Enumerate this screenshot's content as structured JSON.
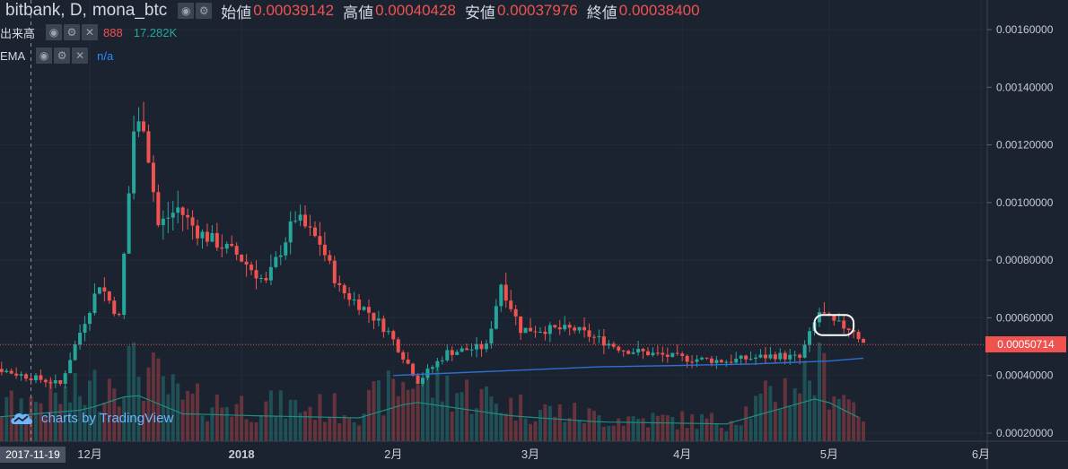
{
  "legend": {
    "symbol": "bitbank, D,",
    "pair": "mona_btc",
    "open_label": "始値",
    "open": "0.00039142",
    "high_label": "高値",
    "high": "0.00040428",
    "low_label": "安値",
    "low": "0.00037976",
    "close_label": "終値",
    "close": "0.00038400"
  },
  "volume_legend": {
    "label": "出来高",
    "value_a": "888",
    "value_b": "17.282K"
  },
  "ema_legend": {
    "label": "EMA",
    "value": "n/a"
  },
  "icons": {
    "visibility": "eye-icon",
    "settings": "gear-icon",
    "remove": "close-icon",
    "brand": "tradingview-cloud-icon"
  },
  "brand": {
    "text": "charts by TradingView"
  },
  "crosshair": {
    "date_label": "2017-11-19"
  },
  "last_price": {
    "label": "0.00050714",
    "value": 0.00050714
  },
  "colors": {
    "background": "#1b2230",
    "up": "#26a69a",
    "down": "#ef5350",
    "ema": "#2e6fd0",
    "volume_ma": "#1f8e80",
    "grid": "#232b3a",
    "axis_text": "#c8ccd4",
    "annotation": "#ffffff"
  },
  "chart_data": {
    "type": "candlestick",
    "x_range": [
      "2017-11-05",
      "2018-06-01"
    ],
    "ylim": [
      0.00018,
      0.00168
    ],
    "y_ticks": [
      {
        "label": "0.00160000",
        "value": 0.0016
      },
      {
        "label": "0.00140000",
        "value": 0.0014
      },
      {
        "label": "0.00120000",
        "value": 0.0012
      },
      {
        "label": "0.00100000",
        "value": 0.001
      },
      {
        "label": "0.00080000",
        "value": 0.0008
      },
      {
        "label": "0.00060000",
        "value": 0.0006
      },
      {
        "label": "0.00040000",
        "value": 0.0004
      },
      {
        "label": "0.00020000",
        "value": 0.0002
      }
    ],
    "x_ticks": [
      {
        "label": "12月",
        "date": "2017-12-01"
      },
      {
        "label": "2018",
        "date": "2018-01-01"
      },
      {
        "label": "2月",
        "date": "2018-02-01"
      },
      {
        "label": "3月",
        "date": "2018-03-01"
      },
      {
        "label": "4月",
        "date": "2018-04-01"
      },
      {
        "label": "5月",
        "date": "2018-05-01"
      },
      {
        "label": "6月",
        "date": "2018-06-01"
      }
    ],
    "crosshair_date": "2017-11-19",
    "ema": [
      {
        "date": "2018-02-01",
        "value": 0.0004
      },
      {
        "date": "2018-02-15",
        "value": 0.00041
      },
      {
        "date": "2018-03-01",
        "value": 0.00042
      },
      {
        "date": "2018-03-15",
        "value": 0.00043
      },
      {
        "date": "2018-04-01",
        "value": 0.000435
      },
      {
        "date": "2018-04-15",
        "value": 0.00044
      },
      {
        "date": "2018-05-01",
        "value": 0.00045
      },
      {
        "date": "2018-05-08",
        "value": 0.00046
      }
    ],
    "annotation": {
      "shape": "rounded-rectangle",
      "date_from": "2018-04-28",
      "date_to": "2018-05-06",
      "price_from": 0.00054,
      "price_to": 0.00061
    },
    "anchors": [
      [
        "2017-11-05",
        0.00046
      ],
      [
        "2017-11-15",
        0.00041
      ],
      [
        "2017-11-25",
        0.00037
      ],
      [
        "2017-11-29",
        0.00055
      ],
      [
        "2017-12-03",
        0.00072
      ],
      [
        "2017-12-07",
        0.0006
      ],
      [
        "2017-12-10",
        0.00125
      ],
      [
        "2017-12-12",
        0.00128
      ],
      [
        "2017-12-15",
        0.00092
      ],
      [
        "2017-12-19",
        0.00098
      ],
      [
        "2017-12-23",
        0.0009
      ],
      [
        "2017-12-31",
        0.00082
      ],
      [
        "2018-01-06",
        0.00072
      ],
      [
        "2018-01-12",
        0.00095
      ],
      [
        "2018-01-17",
        0.00086
      ],
      [
        "2018-01-21",
        0.0007
      ],
      [
        "2018-01-27",
        0.00062
      ],
      [
        "2018-01-31",
        0.00055
      ],
      [
        "2018-02-04",
        0.00044
      ],
      [
        "2018-02-06",
        0.00038
      ],
      [
        "2018-02-12",
        0.00048
      ],
      [
        "2018-02-20",
        0.0005
      ],
      [
        "2018-02-23",
        0.00072
      ],
      [
        "2018-02-27",
        0.00056
      ],
      [
        "2018-03-10",
        0.00056
      ],
      [
        "2018-03-20",
        0.00049
      ],
      [
        "2018-04-01",
        0.00046
      ],
      [
        "2018-04-10",
        0.00045
      ],
      [
        "2018-04-20",
        0.00047
      ],
      [
        "2018-04-25",
        0.00046
      ],
      [
        "2018-04-29",
        0.00062
      ],
      [
        "2018-05-02",
        0.00058
      ],
      [
        "2018-05-06",
        0.00056
      ],
      [
        "2018-05-08",
        0.00051
      ]
    ],
    "volume_range": [
      0,
      1
    ],
    "volume_anchors": [
      [
        "2017-11-05",
        0.35
      ],
      [
        "2017-11-30",
        0.6
      ],
      [
        "2017-12-10",
        1.0
      ],
      [
        "2017-12-20",
        0.5
      ],
      [
        "2018-01-05",
        0.45
      ],
      [
        "2018-01-25",
        0.4
      ],
      [
        "2018-02-05",
        0.8
      ],
      [
        "2018-02-25",
        0.45
      ],
      [
        "2018-03-15",
        0.3
      ],
      [
        "2018-04-10",
        0.25
      ],
      [
        "2018-04-29",
        0.9
      ],
      [
        "2018-05-08",
        0.35
      ]
    ]
  }
}
